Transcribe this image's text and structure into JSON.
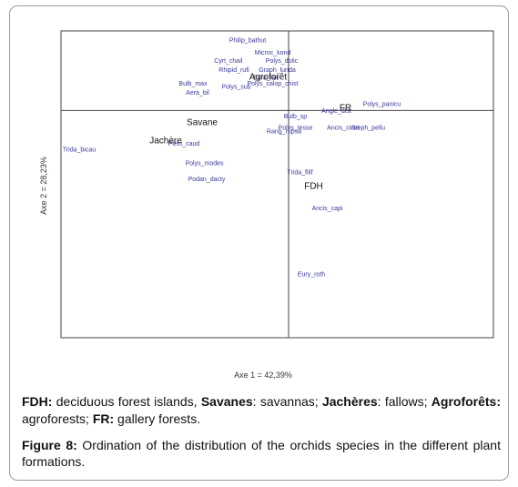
{
  "chart_data": {
    "type": "scatter",
    "title": "",
    "xlabel": "Axe 1 = 42,39%",
    "ylabel": "Axe 2 = 28,23%",
    "xlim": [
      -1.0,
      0.9
    ],
    "ylim": [
      -1.0,
      0.35
    ],
    "grid": false,
    "species": [
      {
        "label": "Philip_bathut",
        "x": -0.18,
        "y": 0.3
      },
      {
        "label": "Microc_kond",
        "x": -0.07,
        "y": 0.245
      },
      {
        "label": "Polys_dolic",
        "x": -0.03,
        "y": 0.21
      },
      {
        "label": "Cyrt_chail",
        "x": -0.265,
        "y": 0.21
      },
      {
        "label": "Rhipid_rufi",
        "x": -0.24,
        "y": 0.17
      },
      {
        "label": "Graph_lurida",
        "x": -0.05,
        "y": 0.17
      },
      {
        "label": "Euro_lan",
        "x": -0.1,
        "y": 0.135
      },
      {
        "label": "Polys_calop_chist",
        "x": -0.07,
        "y": 0.11
      },
      {
        "label": "Bulb_max",
        "x": -0.42,
        "y": 0.11
      },
      {
        "label": "Polys_sub",
        "x": -0.23,
        "y": 0.095
      },
      {
        "label": "Aera_bil",
        "x": -0.4,
        "y": 0.07
      },
      {
        "label": "Polys_panicu",
        "x": 0.41,
        "y": 0.02
      },
      {
        "label": "Angle_dist",
        "x": 0.21,
        "y": -0.01
      },
      {
        "label": "Bulb_sp",
        "x": 0.03,
        "y": -0.035
      },
      {
        "label": "Polys_tesse",
        "x": 0.03,
        "y": -0.085
      },
      {
        "label": "Ancis_cinet",
        "x": 0.24,
        "y": -0.085
      },
      {
        "label": "Steph_pellu",
        "x": 0.35,
        "y": -0.085
      },
      {
        "label": "Rang_rupsa",
        "x": -0.02,
        "y": -0.1
      },
      {
        "label": "Plect_caud",
        "x": -0.46,
        "y": -0.155
      },
      {
        "label": "Trida_bicau",
        "x": -0.92,
        "y": -0.18
      },
      {
        "label": "Polys_modes",
        "x": -0.37,
        "y": -0.24
      },
      {
        "label": "Trida_filif",
        "x": 0.05,
        "y": -0.28
      },
      {
        "label": "Podan_dacty",
        "x": -0.36,
        "y": -0.31
      },
      {
        "label": "Ancis_capi",
        "x": 0.17,
        "y": -0.44
      },
      {
        "label": "Eury_roth",
        "x": 0.1,
        "y": -0.73
      }
    ],
    "formations": [
      {
        "label": "Agroforêt",
        "x": -0.09,
        "y": 0.135
      },
      {
        "label": "FR",
        "x": 0.25,
        "y": 0.0
      },
      {
        "label": "Savane",
        "x": -0.38,
        "y": -0.065
      },
      {
        "label": "Jachère",
        "x": -0.54,
        "y": -0.145
      },
      {
        "label": "FDH",
        "x": 0.11,
        "y": -0.345
      }
    ]
  },
  "legend": {
    "fdh_abbr": "FDH:",
    "fdh_text": " deciduous forest islands, ",
    "sav_abbr": "Savanes",
    "sav_text": ": savannas; ",
    "jac_abbr": "Jachères",
    "jac_text": ": fallows; ",
    "agro_abbr": "Agroforêts:",
    "agro_text": " agroforests; ",
    "fr_abbr": "FR:",
    "fr_text": " gallery forests."
  },
  "caption": {
    "label": "Figure 8:",
    "text": " Ordination of the distribution of the orchids species in the different plant formations."
  },
  "colors": {
    "species": "#3a3a9a",
    "formation": "#111111",
    "axis": "#444444"
  }
}
